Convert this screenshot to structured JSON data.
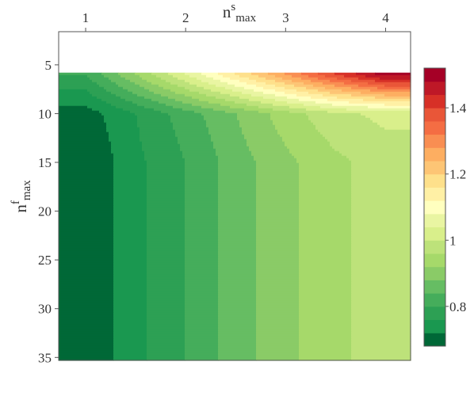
{
  "chart_data": {
    "type": "heatmap",
    "subtype": "filled-contour",
    "xlabel": {
      "base": "n",
      "superscript": "s",
      "subscript": "max"
    },
    "ylabel": {
      "base": "n",
      "superscript": "f",
      "subscript": "max"
    },
    "x_axis_position": "top",
    "y_axis_inverted": true,
    "xlim": [
      0.73,
      4.25
    ],
    "ylim": [
      1.6,
      35.3
    ],
    "x_ticks": [
      1,
      2,
      3,
      4
    ],
    "x_tick_labels": [
      "1",
      "2",
      "3",
      "4"
    ],
    "y_ticks": [
      5,
      10,
      15,
      20,
      25,
      30,
      35
    ],
    "y_tick_labels": [
      "5",
      "10",
      "15",
      "20",
      "25",
      "30",
      "35"
    ],
    "data_region": {
      "x": [
        0.73,
        4.25
      ],
      "y": [
        5.8,
        35.3
      ]
    },
    "grid": false,
    "colorbar": {
      "position": "right",
      "levels": [
        0.68,
        0.72,
        0.76,
        0.8,
        0.84,
        0.88,
        0.92,
        0.96,
        1.0,
        1.04,
        1.08,
        1.12,
        1.16,
        1.2,
        1.24,
        1.28,
        1.32,
        1.36,
        1.4,
        1.44,
        1.48,
        1.52
      ],
      "colors": [
        "#006837",
        "#1a9850",
        "#2da054",
        "#45ad5b",
        "#66bd63",
        "#8acb67",
        "#a6d96a",
        "#bde27a",
        "#d9ef8b",
        "#e9f5a2",
        "#ffffbf",
        "#fff0a5",
        "#fee08b",
        "#fdc575",
        "#fdae61",
        "#f98e52",
        "#f46d43",
        "#e95638",
        "#d73027",
        "#be1827",
        "#a50026"
      ],
      "tick_values": [
        0.8,
        1.0,
        1.2,
        1.4
      ],
      "tick_labels": [
        "0.8",
        "1",
        "1.2",
        "1.4"
      ]
    },
    "summary": {
      "x_columns": [
        1,
        1.5,
        2,
        2.5,
        3,
        3.5,
        4
      ],
      "y_rows": [
        6,
        10,
        15,
        20,
        25,
        30,
        35
      ],
      "values_by_row": [
        [
          0.8,
          0.92,
          1.04,
          1.16,
          1.28,
          1.4,
          1.5
        ],
        [
          0.7,
          0.76,
          0.82,
          0.88,
          0.94,
          0.99,
          1.01
        ],
        [
          0.68,
          0.75,
          0.8,
          0.86,
          0.91,
          0.95,
          0.98
        ],
        [
          0.68,
          0.75,
          0.8,
          0.86,
          0.91,
          0.95,
          0.98
        ],
        [
          0.68,
          0.75,
          0.8,
          0.86,
          0.91,
          0.95,
          0.98
        ],
        [
          0.68,
          0.75,
          0.8,
          0.86,
          0.91,
          0.95,
          0.98
        ],
        [
          0.68,
          0.75,
          0.8,
          0.86,
          0.91,
          0.95,
          0.98
        ]
      ]
    }
  }
}
